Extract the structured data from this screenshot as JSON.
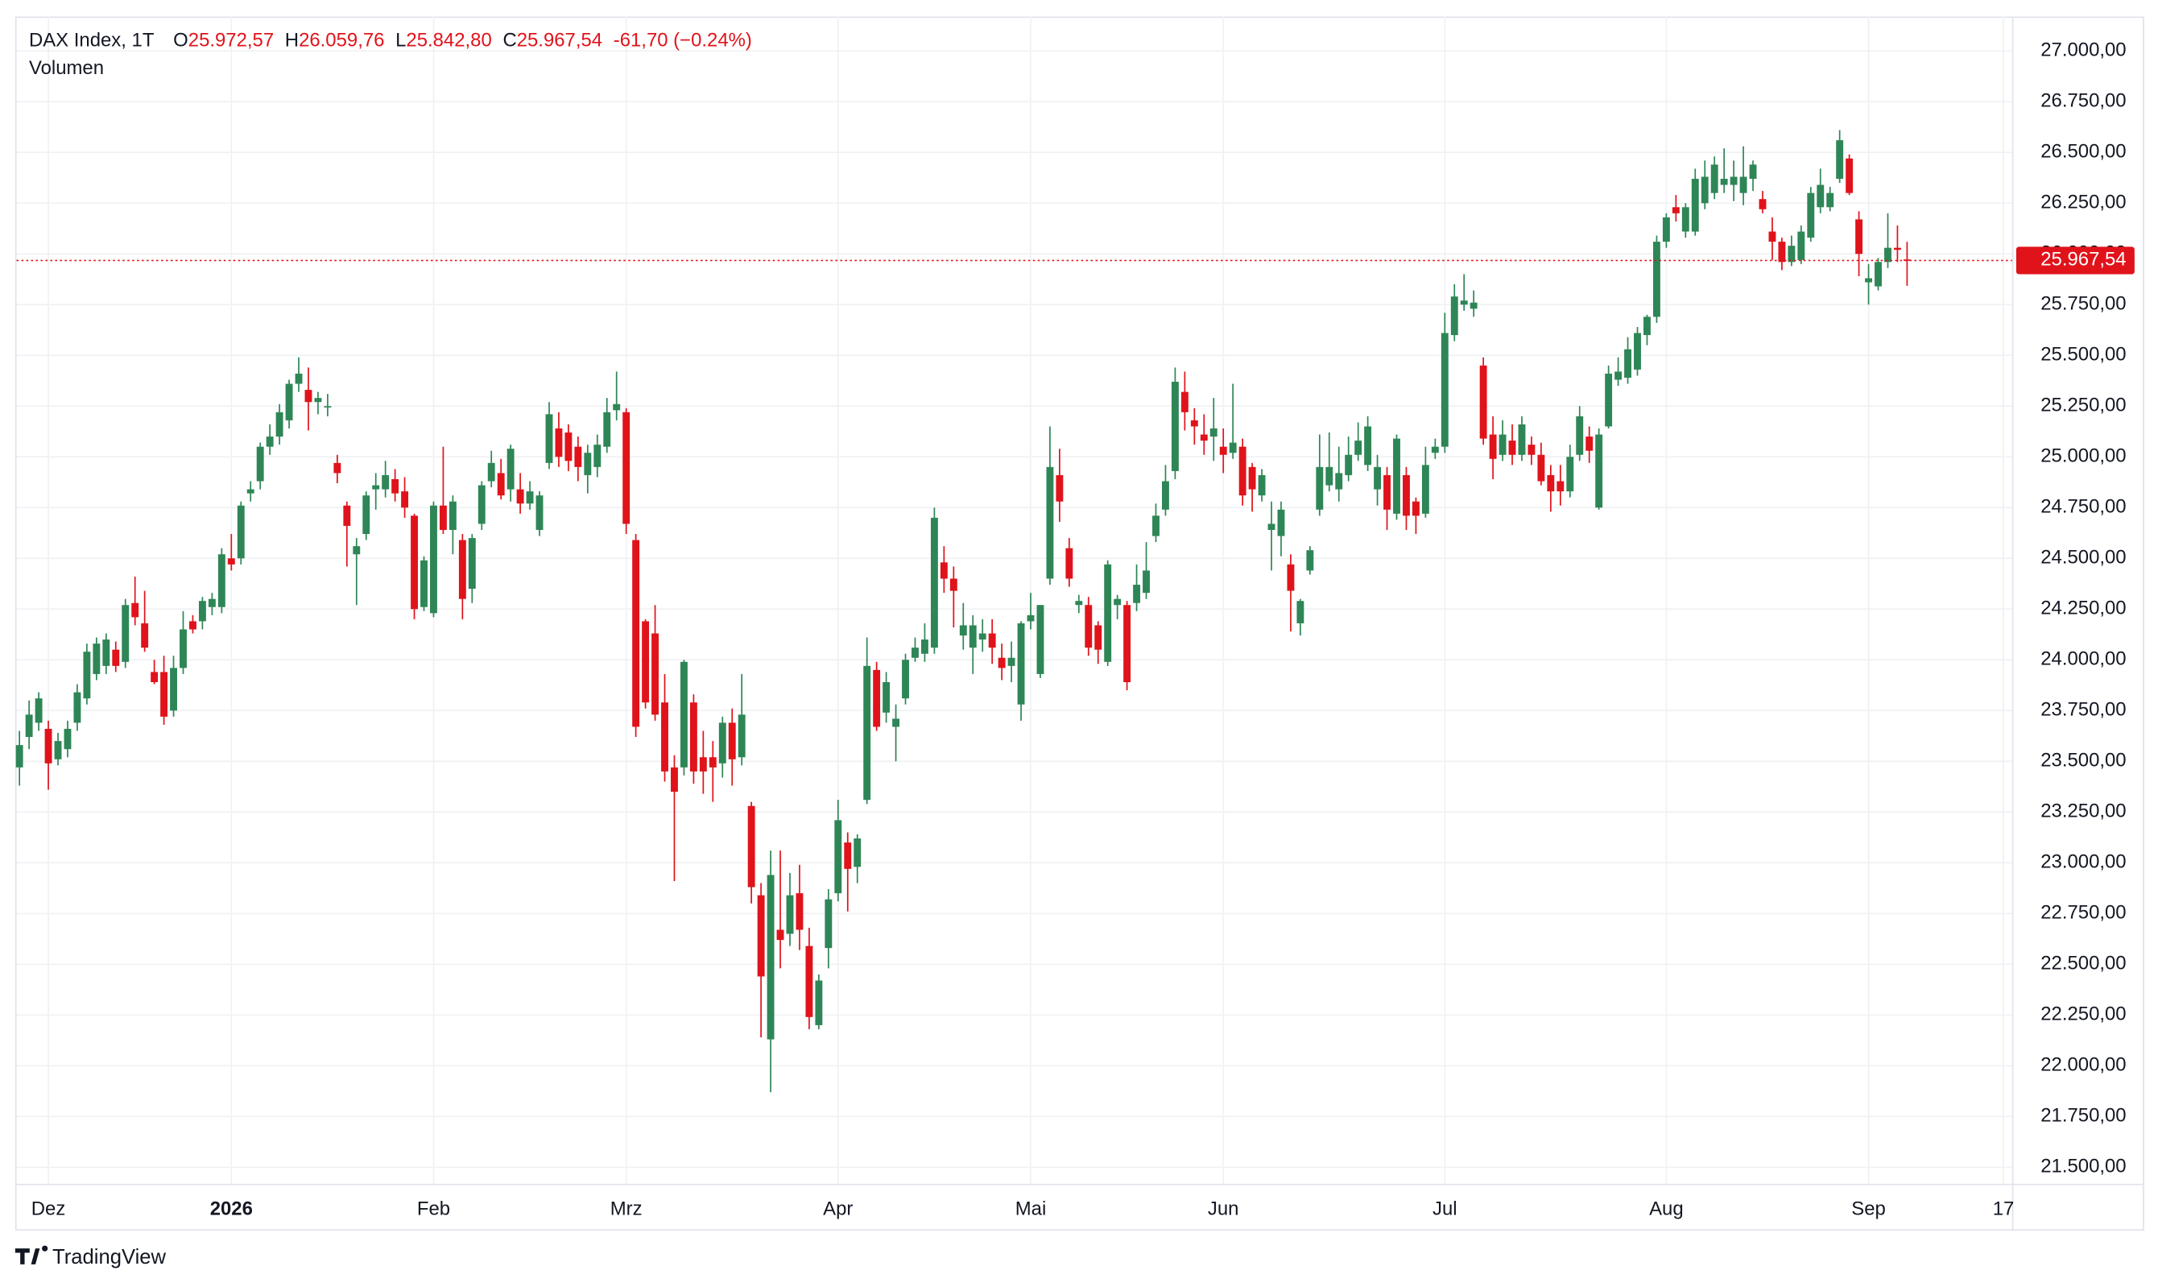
{
  "header": {
    "title": "DAX Index, 1T",
    "fields": [
      {
        "key": "O",
        "value": "25.972,57"
      },
      {
        "key": "H",
        "value": "26.059,76"
      },
      {
        "key": "L",
        "value": "25.842,80"
      },
      {
        "key": "C",
        "value": "25.967,54"
      }
    ],
    "change": "-61,70 (−0.24%)",
    "indicator": "Volumen"
  },
  "brand": "TradingView",
  "chart_data": {
    "type": "candlestick",
    "up_color": "#2e8656",
    "down_color": "#e0131b",
    "xlim": [
      -0.3,
      206.9
    ],
    "xticks": [
      {
        "value": 3,
        "label": "Dez"
      },
      {
        "value": 22,
        "label": "2026"
      },
      {
        "value": 43,
        "label": "Feb"
      },
      {
        "value": 63,
        "label": "Mrz"
      },
      {
        "value": 85,
        "label": "Apr"
      },
      {
        "value": 105,
        "label": "Mai"
      },
      {
        "value": 125,
        "label": "Jun"
      },
      {
        "value": 148,
        "label": "Jul"
      },
      {
        "value": 171,
        "label": "Aug"
      },
      {
        "value": 192,
        "label": "Sep"
      },
      {
        "value": 206,
        "label": "17"
      }
    ],
    "ylim": [
      21500,
      27000
    ],
    "yticks": [
      {
        "value": 21500,
        "label": "21.500,00"
      },
      {
        "value": 21750,
        "label": "21.750,00"
      },
      {
        "value": 22000,
        "label": "22.000,00"
      },
      {
        "value": 22250,
        "label": "22.250,00"
      },
      {
        "value": 22500,
        "label": "22.500,00"
      },
      {
        "value": 22750,
        "label": "22.750,00"
      },
      {
        "value": 23000,
        "label": "23.000,00"
      },
      {
        "value": 23250,
        "label": "23.250,00"
      },
      {
        "value": 23500,
        "label": "23.500,00"
      },
      {
        "value": 23750,
        "label": "23.750,00"
      },
      {
        "value": 24000,
        "label": "24.000,00"
      },
      {
        "value": 24250,
        "label": "24.250,00"
      },
      {
        "value": 24500,
        "label": "24.500,00"
      },
      {
        "value": 24750,
        "label": "24.750,00"
      },
      {
        "value": 25000,
        "label": "25.000,00"
      },
      {
        "value": 25250,
        "label": "25.250,00"
      },
      {
        "value": 25500,
        "label": "25.500,00"
      },
      {
        "value": 25750,
        "label": "25.750,00"
      },
      {
        "value": 26000,
        "label": "26.000,00"
      },
      {
        "value": 26250,
        "label": "26.250,00"
      },
      {
        "value": 26500,
        "label": "26.500,00"
      },
      {
        "value": 26750,
        "label": "26.750,00"
      },
      {
        "value": 27000,
        "label": "27.000,00"
      }
    ],
    "grid": true,
    "last_price": {
      "value": 25967.54,
      "label": "25.967,54"
    },
    "ohlc": [
      [
        23470,
        23650,
        23380,
        23580
      ],
      [
        23620,
        23800,
        23560,
        23730
      ],
      [
        23690,
        23840,
        23650,
        23810
      ],
      [
        23660,
        23700,
        23360,
        23490
      ],
      [
        23510,
        23640,
        23480,
        23600
      ],
      [
        23560,
        23700,
        23520,
        23660
      ],
      [
        23690,
        23880,
        23650,
        23840
      ],
      [
        23810,
        24080,
        23780,
        24040
      ],
      [
        23930,
        24110,
        23900,
        24080
      ],
      [
        23970,
        24130,
        23930,
        24100
      ],
      [
        24050,
        24090,
        23940,
        23970
      ],
      [
        23990,
        24300,
        23960,
        24270
      ],
      [
        24280,
        24410,
        24170,
        24210
      ],
      [
        24180,
        24340,
        24040,
        24060
      ],
      [
        23940,
        24000,
        23880,
        23890
      ],
      [
        23940,
        24020,
        23680,
        23720
      ],
      [
        23750,
        24020,
        23720,
        23960
      ],
      [
        23960,
        24240,
        23930,
        24150
      ],
      [
        24190,
        24220,
        24130,
        24150
      ],
      [
        24190,
        24310,
        24150,
        24290
      ],
      [
        24260,
        24330,
        24220,
        24300
      ],
      [
        24260,
        24550,
        24230,
        24520
      ],
      [
        24500,
        24620,
        24440,
        24470
      ],
      [
        24500,
        24780,
        24470,
        24760
      ],
      [
        24820,
        24880,
        24780,
        24840
      ],
      [
        24880,
        25070,
        24840,
        25050
      ],
      [
        25050,
        25160,
        25010,
        25100
      ],
      [
        25100,
        25260,
        25060,
        25220
      ],
      [
        25180,
        25380,
        25140,
        25360
      ],
      [
        25360,
        25490,
        25320,
        25410
      ],
      [
        25330,
        25440,
        25130,
        25270
      ],
      [
        25270,
        25320,
        25210,
        25290
      ],
      [
        25250,
        25310,
        25200,
        25250
      ],
      [
        24970,
        25010,
        24870,
        24920
      ],
      [
        24760,
        24780,
        24460,
        24660
      ],
      [
        24520,
        24600,
        24270,
        24560
      ],
      [
        24620,
        24830,
        24590,
        24810
      ],
      [
        24840,
        24920,
        24740,
        24860
      ],
      [
        24840,
        24980,
        24800,
        24910
      ],
      [
        24890,
        24940,
        24780,
        24820
      ],
      [
        24830,
        24900,
        24700,
        24750
      ],
      [
        24710,
        24720,
        24200,
        24250
      ],
      [
        24260,
        24510,
        24240,
        24490
      ],
      [
        24230,
        24780,
        24210,
        24760
      ],
      [
        24760,
        25050,
        24620,
        24640
      ],
      [
        24640,
        24810,
        24520,
        24780
      ],
      [
        24590,
        24620,
        24200,
        24300
      ],
      [
        24350,
        24620,
        24280,
        24600
      ],
      [
        24670,
        24880,
        24640,
        24860
      ],
      [
        24880,
        25030,
        24850,
        24970
      ],
      [
        24920,
        24990,
        24790,
        24810
      ],
      [
        24840,
        25060,
        24780,
        25040
      ],
      [
        24840,
        24920,
        24720,
        24770
      ],
      [
        24770,
        24880,
        24740,
        24830
      ],
      [
        24640,
        24830,
        24610,
        24810
      ],
      [
        24970,
        25270,
        24940,
        25210
      ],
      [
        25140,
        25220,
        24950,
        25000
      ],
      [
        25120,
        25160,
        24930,
        24980
      ],
      [
        25050,
        25100,
        24880,
        24950
      ],
      [
        24910,
        25060,
        24820,
        25020
      ],
      [
        24950,
        25110,
        24900,
        25060
      ],
      [
        25050,
        25290,
        25020,
        25220
      ],
      [
        25230,
        25420,
        25180,
        25260
      ],
      [
        25220,
        25240,
        24620,
        24670
      ],
      [
        24590,
        24620,
        23620,
        23670
      ],
      [
        24190,
        24200,
        23760,
        23790
      ],
      [
        24130,
        24270,
        23700,
        23730
      ],
      [
        23790,
        23930,
        23400,
        23450
      ],
      [
        23470,
        23530,
        22910,
        23350
      ],
      [
        23470,
        24000,
        23430,
        23990
      ],
      [
        23790,
        23830,
        23390,
        23450
      ],
      [
        23520,
        23650,
        23340,
        23450
      ],
      [
        23520,
        23600,
        23300,
        23470
      ],
      [
        23490,
        23720,
        23420,
        23690
      ],
      [
        23690,
        23760,
        23380,
        23510
      ],
      [
        23520,
        23930,
        23480,
        23730
      ],
      [
        23280,
        23300,
        22800,
        22880
      ],
      [
        22840,
        22900,
        22140,
        22440
      ],
      [
        22130,
        23060,
        21870,
        22940
      ],
      [
        22670,
        23060,
        22480,
        22620
      ],
      [
        22650,
        22950,
        22590,
        22840
      ],
      [
        22850,
        22990,
        22570,
        22670
      ],
      [
        22590,
        22680,
        22180,
        22240
      ],
      [
        22200,
        22450,
        22180,
        22420
      ],
      [
        22580,
        22870,
        22480,
        22820
      ],
      [
        22850,
        23310,
        22810,
        23210
      ],
      [
        23100,
        23150,
        22760,
        22970
      ],
      [
        22980,
        23140,
        22900,
        23120
      ],
      [
        23310,
        24110,
        23290,
        23970
      ],
      [
        23950,
        23990,
        23650,
        23670
      ],
      [
        23740,
        23940,
        23690,
        23890
      ],
      [
        23670,
        23780,
        23500,
        23710
      ],
      [
        23810,
        24030,
        23780,
        24000
      ],
      [
        24010,
        24110,
        23990,
        24060
      ],
      [
        24030,
        24180,
        23990,
        24100
      ],
      [
        24060,
        24750,
        24030,
        24700
      ],
      [
        24480,
        24560,
        24330,
        24400
      ],
      [
        24400,
        24460,
        24160,
        24340
      ],
      [
        24120,
        24280,
        24050,
        24170
      ],
      [
        24060,
        24220,
        23930,
        24170
      ],
      [
        24100,
        24200,
        24040,
        24130
      ],
      [
        24130,
        24200,
        23980,
        24060
      ],
      [
        24010,
        24080,
        23900,
        23960
      ],
      [
        23970,
        24090,
        23890,
        24010
      ],
      [
        23780,
        24190,
        23700,
        24180
      ],
      [
        24190,
        24330,
        24150,
        24220
      ],
      [
        23930,
        24270,
        23910,
        24270
      ],
      [
        24400,
        25150,
        24370,
        24950
      ],
      [
        24910,
        25040,
        24680,
        24780
      ],
      [
        24550,
        24600,
        24360,
        24400
      ],
      [
        24270,
        24320,
        24230,
        24290
      ],
      [
        24270,
        24310,
        24020,
        24060
      ],
      [
        24170,
        24190,
        23980,
        24050
      ],
      [
        23990,
        24490,
        23970,
        24470
      ],
      [
        24270,
        24320,
        24200,
        24300
      ],
      [
        24270,
        24290,
        23850,
        23890
      ],
      [
        24280,
        24470,
        24240,
        24370
      ],
      [
        24330,
        24580,
        24300,
        24440
      ],
      [
        24610,
        24770,
        24580,
        24710
      ],
      [
        24740,
        24960,
        24710,
        24880
      ],
      [
        24930,
        25440,
        24890,
        25370
      ],
      [
        25320,
        25420,
        25130,
        25220
      ],
      [
        25180,
        25240,
        25060,
        25150
      ],
      [
        25110,
        25210,
        25010,
        25080
      ],
      [
        25100,
        25290,
        24980,
        25140
      ],
      [
        25050,
        25140,
        24920,
        25010
      ],
      [
        25020,
        25360,
        24990,
        25070
      ],
      [
        25050,
        25090,
        24760,
        24810
      ],
      [
        24950,
        24970,
        24730,
        24840
      ],
      [
        24810,
        24940,
        24780,
        24910
      ],
      [
        24640,
        24780,
        24440,
        24670
      ],
      [
        24610,
        24780,
        24510,
        24740
      ],
      [
        24470,
        24520,
        24140,
        24340
      ],
      [
        24180,
        24300,
        24120,
        24290
      ],
      [
        24440,
        24560,
        24420,
        24540
      ],
      [
        24740,
        25110,
        24710,
        24950
      ],
      [
        24860,
        25120,
        24830,
        24950
      ],
      [
        24840,
        25050,
        24780,
        24920
      ],
      [
        24910,
        25100,
        24880,
        25010
      ],
      [
        25010,
        25170,
        24980,
        25080
      ],
      [
        24960,
        25200,
        24930,
        25150
      ],
      [
        24840,
        25010,
        24760,
        24950
      ],
      [
        24910,
        24950,
        24640,
        24740
      ],
      [
        24720,
        25110,
        24690,
        25090
      ],
      [
        24910,
        24950,
        24640,
        24710
      ],
      [
        24780,
        24800,
        24620,
        24710
      ],
      [
        24720,
        25050,
        24700,
        24960
      ],
      [
        25020,
        25090,
        24990,
        25050
      ],
      [
        25050,
        25710,
        25020,
        25610
      ],
      [
        25600,
        25850,
        25570,
        25790
      ],
      [
        25750,
        25900,
        25720,
        25770
      ],
      [
        25730,
        25820,
        25690,
        25760
      ],
      [
        25450,
        25490,
        25060,
        25090
      ],
      [
        25110,
        25200,
        24890,
        24990
      ],
      [
        25010,
        25180,
        24980,
        25110
      ],
      [
        25080,
        25160,
        24960,
        25010
      ],
      [
        25010,
        25200,
        24980,
        25160
      ],
      [
        25060,
        25100,
        24960,
        25010
      ],
      [
        25010,
        25070,
        24860,
        24880
      ],
      [
        24910,
        24960,
        24730,
        24830
      ],
      [
        24880,
        24960,
        24760,
        24830
      ],
      [
        24830,
        25060,
        24800,
        25000
      ],
      [
        25010,
        25250,
        24980,
        25200
      ],
      [
        25100,
        25150,
        24970,
        25030
      ],
      [
        24750,
        25140,
        24740,
        25110
      ],
      [
        25150,
        25450,
        25140,
        25410
      ],
      [
        25380,
        25490,
        25350,
        25420
      ],
      [
        25390,
        25590,
        25360,
        25530
      ],
      [
        25430,
        25640,
        25400,
        25610
      ],
      [
        25600,
        25700,
        25550,
        25690
      ],
      [
        25690,
        26090,
        25660,
        26060
      ],
      [
        26060,
        26200,
        26030,
        26180
      ],
      [
        26230,
        26290,
        26160,
        26200
      ],
      [
        26110,
        26250,
        26080,
        26230
      ],
      [
        26110,
        26420,
        26090,
        26370
      ],
      [
        26250,
        26460,
        26220,
        26380
      ],
      [
        26300,
        26480,
        26270,
        26440
      ],
      [
        26340,
        26520,
        26300,
        26370
      ],
      [
        26340,
        26460,
        26260,
        26380
      ],
      [
        26300,
        26530,
        26240,
        26380
      ],
      [
        26370,
        26460,
        26310,
        26440
      ],
      [
        26270,
        26310,
        26200,
        26220
      ],
      [
        26110,
        26180,
        25970,
        26060
      ],
      [
        26060,
        26080,
        25920,
        25960
      ],
      [
        25960,
        26090,
        25940,
        26040
      ],
      [
        25970,
        26140,
        25950,
        26110
      ],
      [
        26080,
        26330,
        26060,
        26300
      ],
      [
        26230,
        26420,
        26200,
        26340
      ],
      [
        26230,
        26330,
        26210,
        26300
      ],
      [
        26370,
        26610,
        26350,
        26560
      ],
      [
        26470,
        26490,
        26290,
        26300
      ],
      [
        26170,
        26210,
        25890,
        26000
      ],
      [
        25860,
        25950,
        25750,
        25880
      ],
      [
        25840,
        25980,
        25820,
        25960
      ],
      [
        25960,
        26200,
        25930,
        26030
      ],
      [
        26030,
        26140,
        25960,
        26020
      ],
      [
        25972.57,
        26059.76,
        25842.8,
        25967.54
      ]
    ]
  }
}
